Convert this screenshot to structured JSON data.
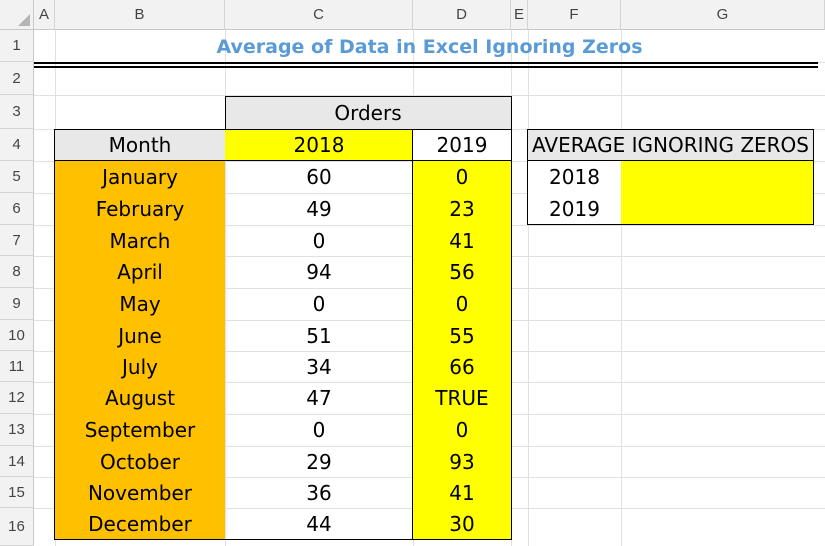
{
  "columns": [
    "A",
    "B",
    "C",
    "D",
    "E",
    "F",
    "G"
  ],
  "rows": [
    "1",
    "2",
    "3",
    "4",
    "5",
    "6",
    "7",
    "8",
    "9",
    "10",
    "11",
    "12",
    "13",
    "14",
    "15",
    "16"
  ],
  "title": "Average of Data in Excel Ignoring Zeros",
  "orders_header": "Orders",
  "table_headers": {
    "month": "Month",
    "y2018": "2018",
    "y2019": "2019"
  },
  "table_rows": [
    {
      "month": "January",
      "y2018": "60",
      "y2019": "0"
    },
    {
      "month": "February",
      "y2018": "49",
      "y2019": "23"
    },
    {
      "month": "March",
      "y2018": "0",
      "y2019": "41"
    },
    {
      "month": "April",
      "y2018": "94",
      "y2019": "56"
    },
    {
      "month": "May",
      "y2018": "0",
      "y2019": "0"
    },
    {
      "month": "June",
      "y2018": "51",
      "y2019": "55"
    },
    {
      "month": "July",
      "y2018": "34",
      "y2019": "66"
    },
    {
      "month": "August",
      "y2018": "47",
      "y2019": "TRUE"
    },
    {
      "month": "September",
      "y2018": "0",
      "y2019": "0"
    },
    {
      "month": "October",
      "y2018": "29",
      "y2019": "93"
    },
    {
      "month": "November",
      "y2018": "36",
      "y2019": "41"
    },
    {
      "month": "December",
      "y2018": "44",
      "y2019": "30"
    }
  ],
  "avg_header": "AVERAGE IGNORING ZEROS",
  "avg_rows": [
    {
      "year": "2018",
      "value": ""
    },
    {
      "year": "2019",
      "value": ""
    }
  ],
  "colors": {
    "orange": "#ffc000",
    "yellow": "#ffff00",
    "title_blue": "#5b9bd5",
    "header_grey": "#e8e8e8"
  }
}
